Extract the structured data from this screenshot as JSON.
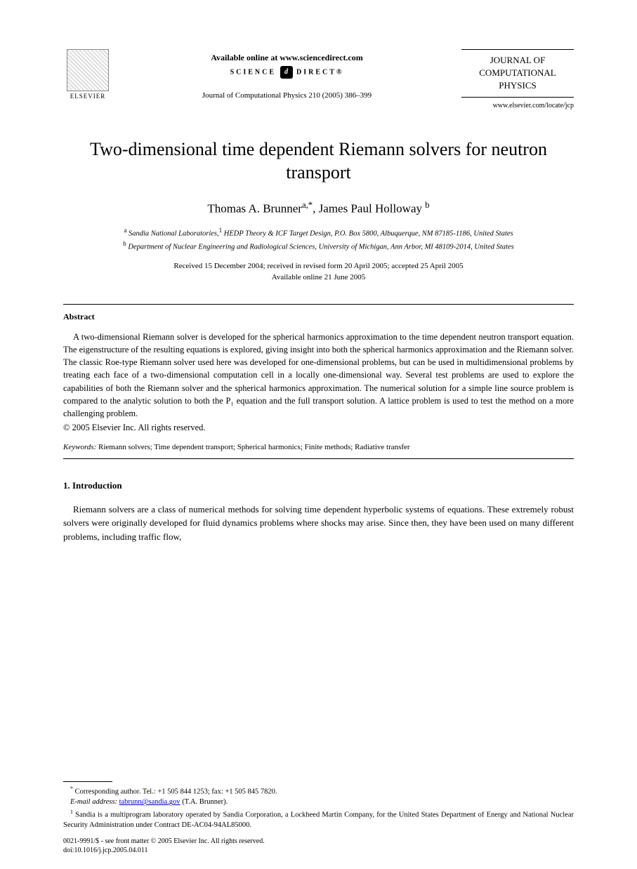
{
  "header": {
    "publisher_name": "ELSEVIER",
    "available_text": "Available online at www.sciencedirect.com",
    "science_direct_left": "SCIENCE",
    "science_direct_right": "DIRECT®",
    "sd_badge": "d",
    "citation": "Journal of Computational Physics 210 (2005) 386–399",
    "journal_line1": "JOURNAL OF",
    "journal_line2": "COMPUTATIONAL",
    "journal_line3": "PHYSICS",
    "journal_url": "www.elsevier.com/locate/jcp"
  },
  "title": "Two-dimensional time dependent Riemann solvers for neutron transport",
  "authors": {
    "a1_name": "Thomas A. Brunner",
    "a1_marks": "a,*",
    "sep": ", ",
    "a2_name": "James Paul Holloway",
    "a2_marks": "b"
  },
  "affiliations": {
    "a_mark": "a",
    "a_text": " Sandia National Laboratories,",
    "a_footmark": "1",
    "a_text2": " HEDP Theory & ICF Target Design, P.O. Box 5800, Albuquerque, NM 87185-1186, United States",
    "b_mark": "b",
    "b_text": " Department of Nuclear Engineering and Radiological Sciences, University of Michigan, Ann Arbor, MI 48109-2014, United States"
  },
  "dates": {
    "line1": "Received 15 December 2004; received in revised form 20 April 2005; accepted 25 April 2005",
    "line2": "Available online 21 June 2005"
  },
  "abstract": {
    "heading": "Abstract",
    "body": "A two-dimensional Riemann solver is developed for the spherical harmonics approximation to the time dependent neutron transport equation. The eigenstructure of the resulting equations is explored, giving insight into both the spherical harmonics approximation and the Riemann solver. The classic Roe-type Riemann solver used here was developed for one-dimensional problems, but can be used in multidimensional problems by treating each face of a two-dimensional computation cell in a locally one-dimensional way. Several test problems are used to explore the capabilities of both the Riemann solver and the spherical harmonics approximation. The numerical solution for a simple line source problem is compared to the analytic solution to both the P₁ equation and the full transport solution. A lattice problem is used to test the method on a more challenging problem.",
    "copyright": "© 2005 Elsevier Inc. All rights reserved."
  },
  "keywords": {
    "label": "Keywords:",
    "text": "  Riemann solvers; Time dependent transport; Spherical harmonics; Finite methods; Radiative transfer"
  },
  "section1": {
    "heading": "1. Introduction",
    "body": "Riemann solvers are a class of numerical methods for solving time dependent hyperbolic systems of equations. These extremely robust solvers were originally developed for fluid dynamics problems where shocks may arise. Since then, they have been used on many different problems, including traffic flow,"
  },
  "footnotes": {
    "corr_mark": "*",
    "corr_text": " Corresponding author. Tel.: +1 505 844 1253; fax: +1 505 845 7820.",
    "email_label": "E-mail address:",
    "email": "tabrunn@sandia.gov",
    "email_after": " (T.A. Brunner).",
    "note1_mark": "1",
    "note1_text": " Sandia is a multiprogram laboratory operated by Sandia Corporation, a Lockheed Martin Company, for the United States Department of Energy and National Nuclear Security Administration under Contract DE-AC04-94AL85000."
  },
  "bottom": {
    "line1": "0021-9991/$ - see front matter © 2005 Elsevier Inc. All rights reserved.",
    "line2": "doi:10.1016/j.jcp.2005.04.011"
  }
}
